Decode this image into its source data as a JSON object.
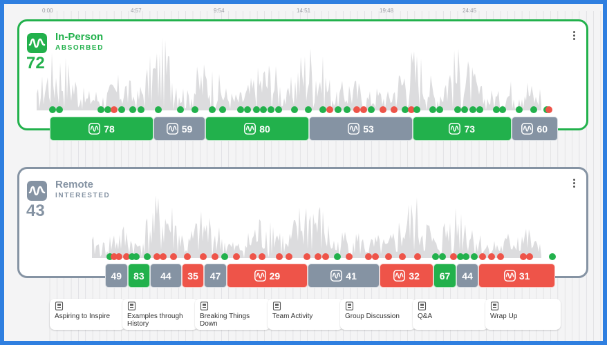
{
  "colors": {
    "absorbed": "#22b14c",
    "interested": "#8593a3",
    "low": "#ee5449",
    "bg": "#f4f4f5"
  },
  "timeline": {
    "ticks": [
      "0:00",
      "4:57",
      "9:54",
      "14:51",
      "19:48",
      "24:45"
    ]
  },
  "groups": [
    {
      "id": "inperson",
      "title": "In-Person",
      "state": "ABSORBED",
      "score": "72",
      "color": "#22b14c",
      "icon": "waveform-icon",
      "segments": [
        {
          "value": "78",
          "status": "absorbed",
          "share": 0.2
        },
        {
          "value": "59",
          "status": "interested",
          "share": 0.1
        },
        {
          "value": "80",
          "status": "absorbed",
          "share": 0.2
        },
        {
          "value": "53",
          "status": "interested",
          "share": 0.2
        },
        {
          "value": "73",
          "status": "absorbed",
          "share": 0.19
        },
        {
          "value": "60",
          "status": "interested",
          "share": 0.09
        }
      ]
    },
    {
      "id": "remote",
      "title": "Remote",
      "state": "INTERESTED",
      "score": "43",
      "color": "#8593a3",
      "icon": "waveform-icon",
      "segments": [
        {
          "value": "49",
          "status": "interested",
          "share": 0.05
        },
        {
          "value": "83",
          "status": "absorbed",
          "share": 0.05
        },
        {
          "value": "44",
          "status": "interested",
          "share": 0.07
        },
        {
          "value": "35",
          "status": "low",
          "share": 0.05
        },
        {
          "value": "47",
          "status": "interested",
          "share": 0.05
        },
        {
          "value": "29",
          "status": "low",
          "share": 0.18
        },
        {
          "value": "41",
          "status": "interested",
          "share": 0.16
        },
        {
          "value": "32",
          "status": "low",
          "share": 0.12
        },
        {
          "value": "67",
          "status": "absorbed",
          "share": 0.05
        },
        {
          "value": "44",
          "status": "interested",
          "share": 0.05
        },
        {
          "value": "31",
          "status": "low",
          "share": 0.17
        }
      ]
    }
  ],
  "chapters": [
    {
      "label": "Aspiring to Inspire",
      "icon": "slide-icon"
    },
    {
      "label": "Examples through History",
      "icon": "slide-icon"
    },
    {
      "label": "Breaking Things Down",
      "icon": "slide-icon"
    },
    {
      "label": "Team Activity",
      "icon": "slide-icon"
    },
    {
      "label": "Group Discussion",
      "icon": "slide-icon"
    },
    {
      "label": "Q&A",
      "icon": "slide-icon"
    },
    {
      "label": "Wrap Up",
      "icon": "slide-icon"
    }
  ]
}
